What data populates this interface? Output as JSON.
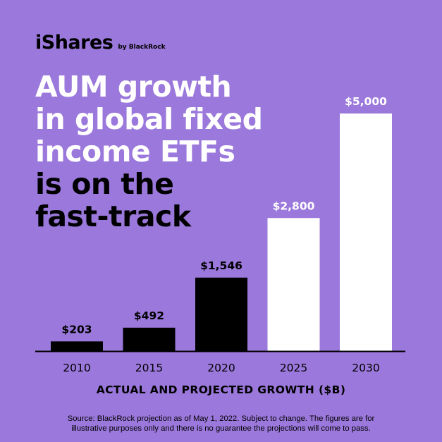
{
  "brand": {
    "name": "iShares",
    "by": "by BlackRock"
  },
  "headline": {
    "white_lines": [
      "AUM growth",
      "in global fixed",
      "income ETFs"
    ],
    "black_lines": [
      "is on the",
      "fast-track"
    ]
  },
  "colors": {
    "background": "#9b78db",
    "actual": "#000000",
    "projected": "#ffffff",
    "axis": "#000000"
  },
  "chart_data": {
    "type": "bar",
    "categories": [
      "2010",
      "2015",
      "2020",
      "2025",
      "2030"
    ],
    "values": [
      203,
      492,
      1546,
      2800,
      5000
    ],
    "labels": [
      "$203",
      "$492",
      "$1,546",
      "$2,800",
      "$5,000"
    ],
    "status": [
      "actual",
      "actual",
      "actual",
      "projected",
      "projected"
    ],
    "ylim": [
      0,
      5000
    ],
    "xlabel": "ACTUAL AND PROJECTED GROWTH ($B)",
    "ylabel": "",
    "grid": false
  },
  "source": {
    "line1": "Source: BlackRock projection as of May 1, 2022. Subject to change. The figures are for",
    "line2": "illustrative purposes only and there is no guarantee the projections will come to pass."
  }
}
